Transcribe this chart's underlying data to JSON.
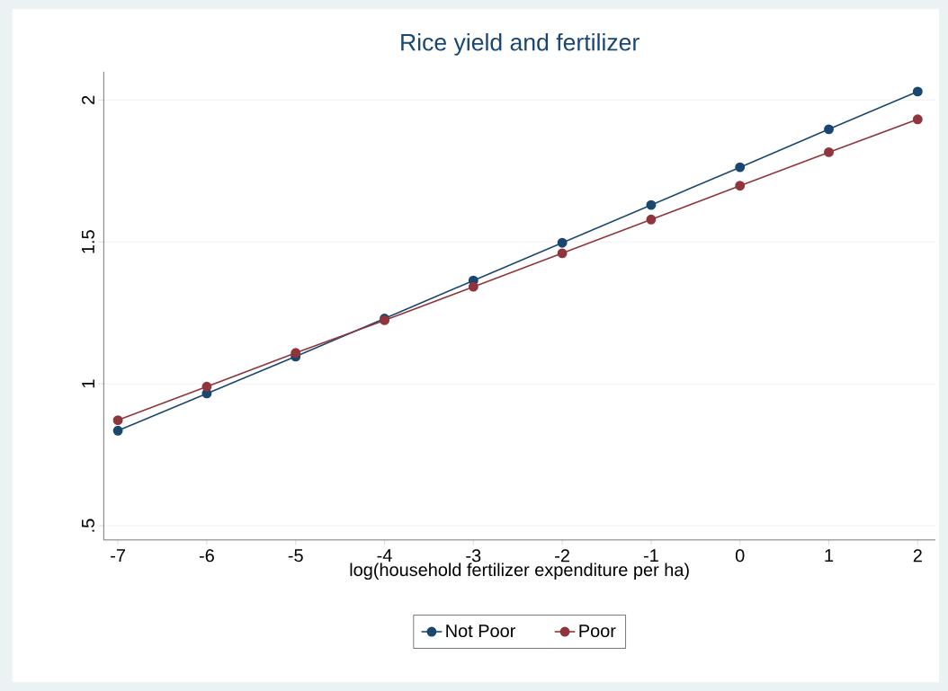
{
  "chart_data": {
    "type": "line",
    "title": "Rice yield and fertilizer",
    "xlabel": "log(household fertilizer expenditure per ha)",
    "x": [
      -7,
      -6,
      -5,
      -4,
      -3,
      -2,
      -1,
      0,
      1,
      2
    ],
    "series": [
      {
        "name": "Not Poor",
        "color": "#1a476f",
        "values": [
          0.835,
          0.966,
          1.096,
          1.23,
          1.364,
          1.497,
          1.63,
          1.763,
          1.897,
          2.03
        ]
      },
      {
        "name": "Poor",
        "color": "#90353b",
        "values": [
          0.872,
          0.99,
          1.109,
          1.224,
          1.342,
          1.46,
          1.579,
          1.698,
          1.816,
          1.932
        ]
      }
    ],
    "xlim": [
      -7.16,
      2.2
    ],
    "ylim": [
      0.45,
      2.1
    ],
    "xticks": [
      -7,
      -6,
      -5,
      -4,
      -3,
      -2,
      -1,
      0,
      1,
      2
    ],
    "yticks": [
      {
        "value": 0.5,
        "label": ".5"
      },
      1,
      1.5,
      2
    ],
    "grid": "y",
    "legend": "bottom",
    "marker": "circle",
    "line_style": "solid"
  }
}
